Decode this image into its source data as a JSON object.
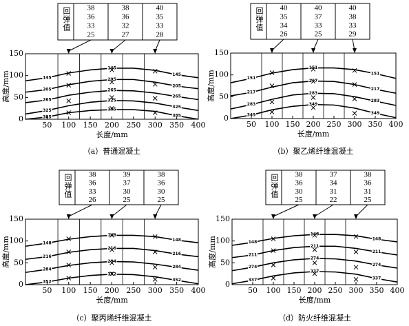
{
  "chart_data": [
    {
      "type": "contour",
      "caption": "（a）普通混凝土",
      "xlabel": "长度/mm",
      "ylabel": "高度/mm",
      "xlim": [
        0,
        400
      ],
      "ylim": [
        0,
        150
      ],
      "xticks": [
        50,
        100,
        150,
        200,
        250,
        300,
        350,
        400
      ],
      "yticks": [
        0,
        50,
        100,
        150
      ],
      "rebound_label": "回弹值",
      "rebound": [
        [
          38,
          36,
          33,
          25
        ],
        [
          38,
          36,
          32,
          27
        ],
        [
          40,
          35,
          33,
          28
        ]
      ],
      "zones": [
        75,
        125,
        175,
        225,
        275
      ],
      "x": [
        0,
        50,
        100,
        150,
        200,
        250,
        300,
        350,
        400
      ],
      "contours": [
        {
          "level": 145,
          "values": [
            88,
            95,
            106,
            113,
            117,
            117,
            112,
            102,
            95
          ]
        },
        {
          "level": 205,
          "values": [
            62,
            68,
            79,
            87,
            91,
            91,
            85,
            76,
            70
          ]
        },
        {
          "level": 265,
          "values": [
            38,
            44,
            55,
            62,
            66,
            65,
            60,
            52,
            45
          ]
        },
        {
          "level": 325,
          "values": [
            12,
            20,
            31,
            39,
            43,
            42,
            37,
            28,
            20
          ]
        },
        {
          "level": 385,
          "values": [
            0,
            5,
            15,
            20,
            22,
            22,
            18,
            8,
            0
          ]
        }
      ],
      "markers": {
        "x": [
          100,
          200,
          300
        ],
        "y": [
          [
            105,
            78,
            42,
            15
          ],
          [
            113,
            85,
            50,
            25
          ],
          [
            110,
            80,
            48,
            15
          ]
        ]
      }
    },
    {
      "type": "contour",
      "caption": "（b）聚乙烯纤维混凝土",
      "xlabel": "长度/mm",
      "ylabel": "高度/mm",
      "xlim": [
        0,
        400
      ],
      "ylim": [
        0,
        150
      ],
      "xticks": [
        50,
        100,
        150,
        200,
        250,
        300,
        350,
        400
      ],
      "yticks": [
        0,
        50,
        100,
        150
      ],
      "rebound_label": "回弹值",
      "rebound": [
        [
          40,
          35,
          34,
          26
        ],
        [
          40,
          37,
          33,
          25
        ],
        [
          40,
          38,
          33,
          29
        ]
      ],
      "zones": [
        75,
        125,
        175,
        225,
        275
      ],
      "x": [
        0,
        50,
        100,
        150,
        200,
        250,
        300,
        350,
        400
      ],
      "contours": [
        {
          "level": 151,
          "values": [
            82,
            92,
            104,
            112,
            116,
            116,
            112,
            103,
            92
          ]
        },
        {
          "level": 217,
          "values": [
            52,
            60,
            72,
            82,
            86,
            85,
            78,
            67,
            58
          ]
        },
        {
          "level": 283,
          "values": [
            22,
            32,
            44,
            54,
            58,
            57,
            50,
            40,
            30
          ]
        },
        {
          "level": 349,
          "values": [
            0,
            8,
            20,
            28,
            32,
            31,
            24,
            12,
            2
          ]
        }
      ],
      "markers": {
        "x": [
          100,
          200,
          300
        ],
        "y": [
          [
            105,
            75,
            38,
            15
          ],
          [
            113,
            85,
            48,
            25
          ],
          [
            110,
            78,
            45,
            12
          ]
        ]
      }
    },
    {
      "type": "contour",
      "caption": "（c）聚丙烯纤维混凝土",
      "xlabel": "长度/mm",
      "ylabel": "高度/mm",
      "xlim": [
        0,
        400
      ],
      "ylim": [
        0,
        150
      ],
      "xticks": [
        50,
        100,
        150,
        200,
        250,
        300,
        350,
        400
      ],
      "yticks": [
        0,
        50,
        100,
        150
      ],
      "rebound_label": "回弹值",
      "rebound": [
        [
          38,
          36,
          33,
          26
        ],
        [
          39,
          37,
          30,
          25
        ],
        [
          38,
          36,
          30,
          25
        ]
      ],
      "zones": [
        75,
        125,
        175,
        225,
        275
      ],
      "x": [
        0,
        50,
        100,
        150,
        200,
        250,
        300,
        350,
        400
      ],
      "contours": [
        {
          "level": 148,
          "values": [
            88,
            95,
            104,
            110,
            113,
            113,
            110,
            102,
            96
          ]
        },
        {
          "level": 216,
          "values": [
            58,
            64,
            74,
            80,
            83,
            83,
            78,
            70,
            64
          ]
        },
        {
          "level": 284,
          "values": [
            28,
            35,
            44,
            50,
            53,
            52,
            47,
            40,
            33
          ]
        },
        {
          "level": 352,
          "values": [
            0,
            6,
            15,
            21,
            24,
            23,
            18,
            10,
            2
          ]
        }
      ],
      "markers": {
        "x": [
          100,
          200,
          300
        ],
        "y": [
          [
            105,
            75,
            45,
            15
          ],
          [
            113,
            80,
            50,
            25
          ],
          [
            110,
            75,
            40,
            12
          ]
        ]
      }
    },
    {
      "type": "contour",
      "caption": "（d）防火纤维混凝土",
      "xlabel": "长度/mm",
      "ylabel": "高度/mm",
      "xlim": [
        0,
        400
      ],
      "ylim": [
        0,
        150
      ],
      "xticks": [
        50,
        100,
        150,
        200,
        250,
        300,
        350,
        400
      ],
      "yticks": [
        0,
        50,
        100,
        150
      ],
      "rebound_label": "回弹值",
      "rebound": [
        [
          38,
          36,
          30,
          25
        ],
        [
          37,
          34,
          31,
          22
        ],
        [
          38,
          36,
          31,
          25
        ]
      ],
      "zones": [
        75,
        125,
        175,
        225,
        275
      ],
      "x": [
        0,
        50,
        100,
        150,
        200,
        250,
        300,
        350,
        400
      ],
      "contours": [
        {
          "level": 148,
          "values": [
            90,
            97,
            106,
            112,
            115,
            115,
            112,
            104,
            98
          ]
        },
        {
          "level": 211,
          "values": [
            62,
            68,
            78,
            85,
            88,
            88,
            83,
            75,
            68
          ]
        },
        {
          "level": 274,
          "values": [
            32,
            40,
            50,
            57,
            60,
            59,
            54,
            45,
            38
          ]
        },
        {
          "level": 337,
          "values": [
            2,
            10,
            20,
            27,
            30,
            29,
            24,
            14,
            6
          ]
        }
      ],
      "markers": {
        "x": [
          100,
          200,
          300
        ],
        "y": [
          [
            105,
            78,
            45,
            15
          ],
          [
            113,
            80,
            50,
            25
          ],
          [
            110,
            75,
            40,
            12
          ]
        ]
      }
    }
  ]
}
